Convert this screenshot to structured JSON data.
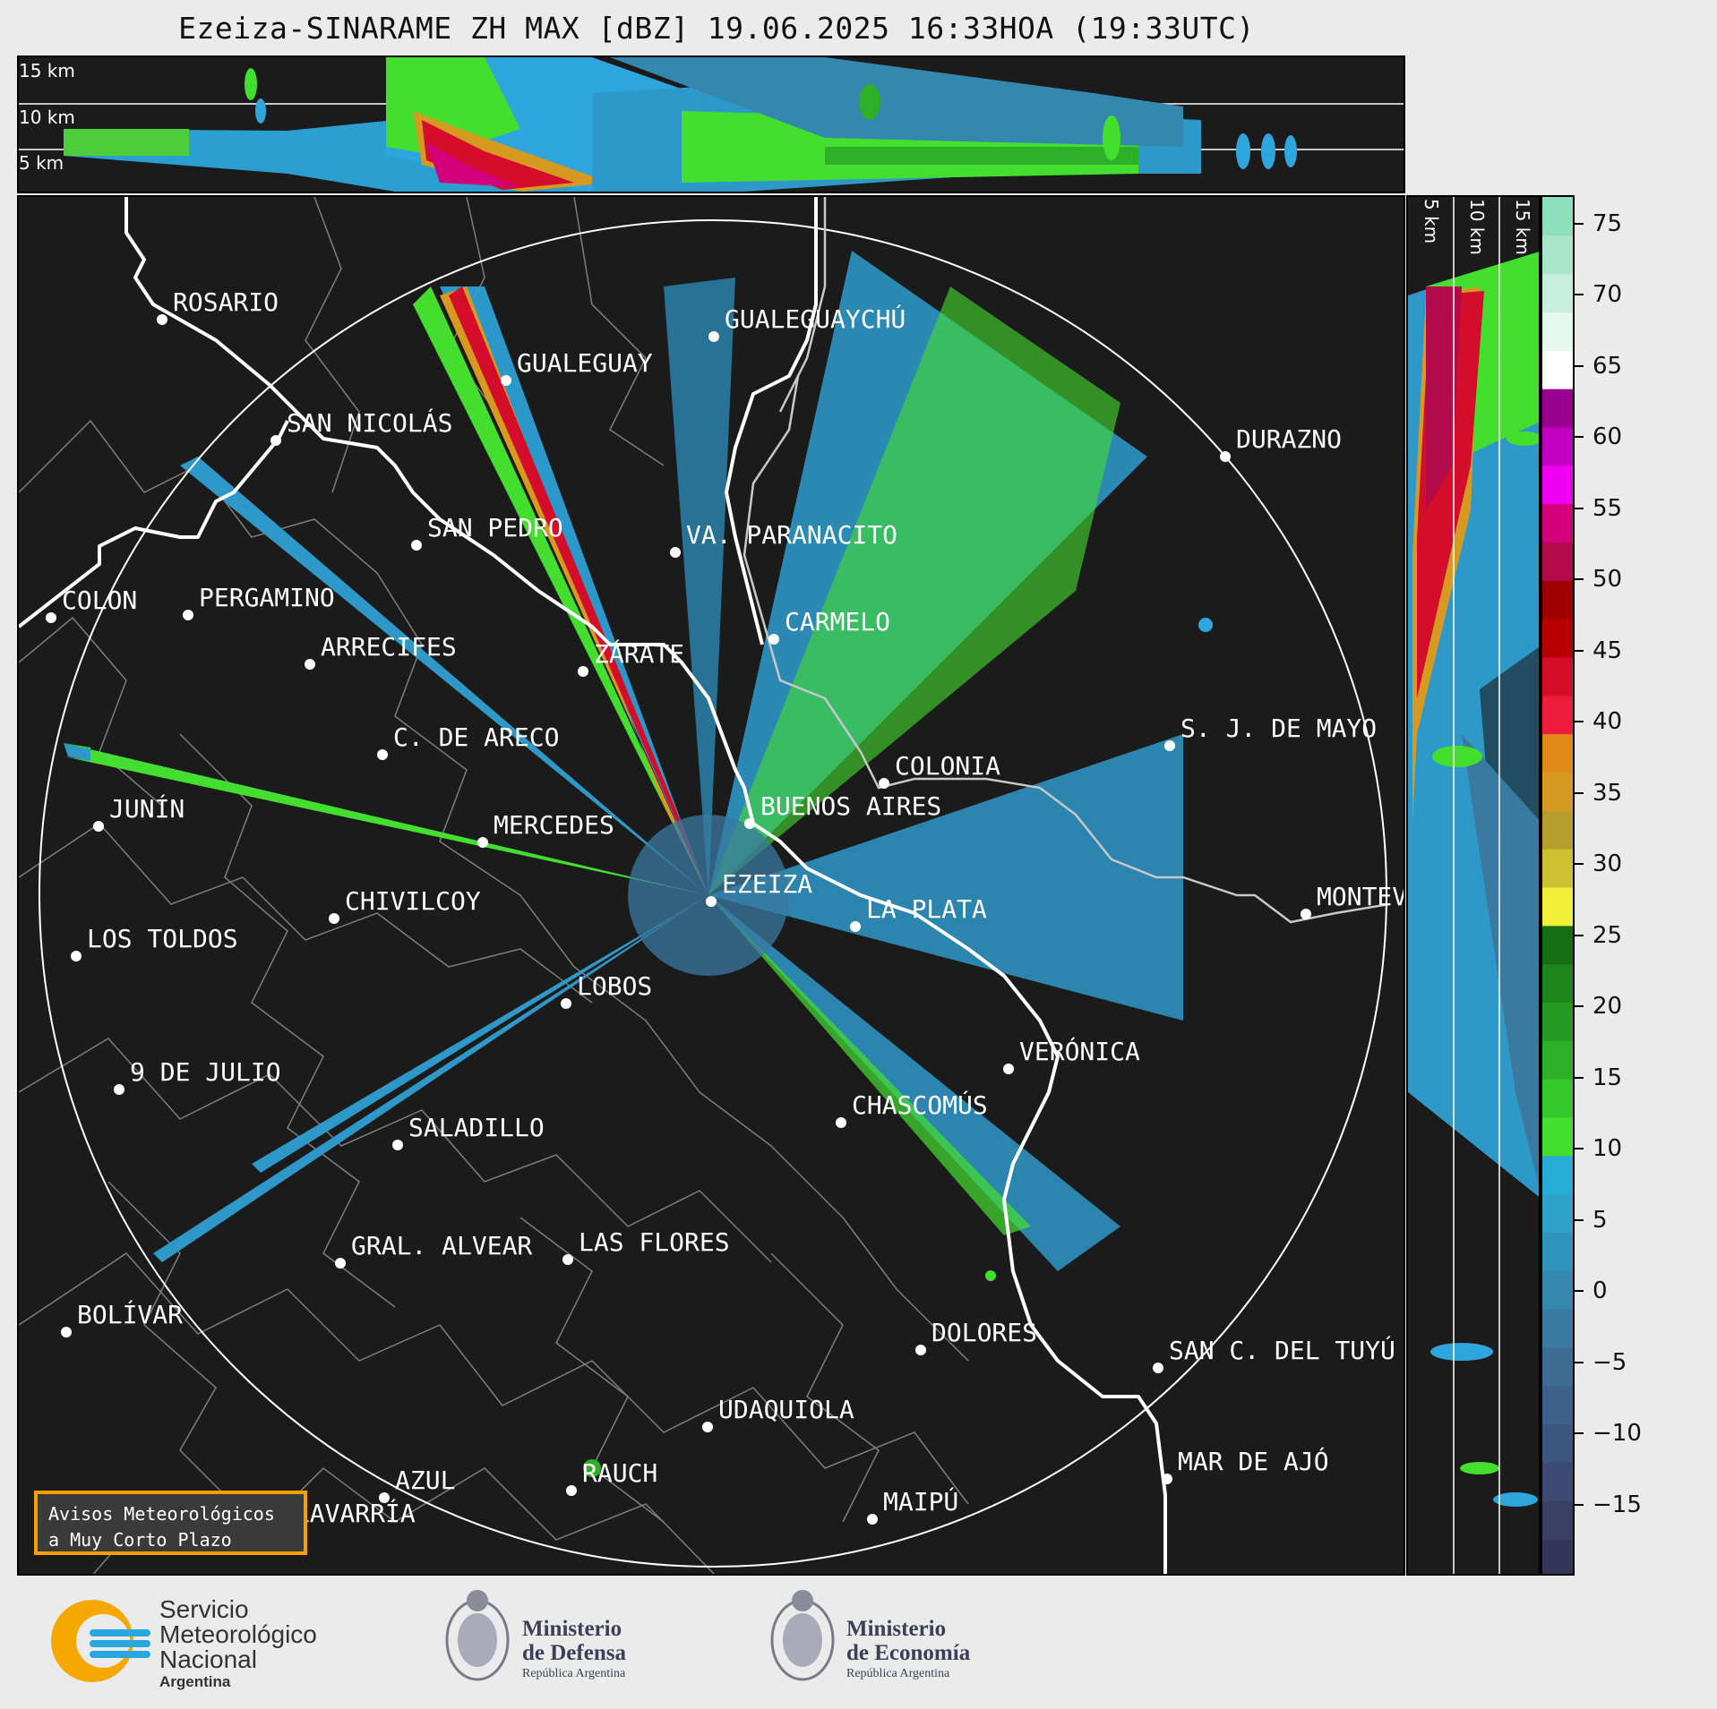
{
  "title": "Ezeiza-SINARAME ZH MAX [dBZ] 19.06.2025 16:33HOA (19:33UTC)",
  "top_panel": {
    "altitude_labels": [
      "15 km",
      "10 km",
      "5 km"
    ]
  },
  "side_panel": {
    "altitude_labels": [
      "5 km",
      "10 km",
      "15 km"
    ]
  },
  "colorbar": {
    "unit": "dBZ",
    "ticks": [
      "75",
      "70",
      "65",
      "60",
      "55",
      "50",
      "45",
      "40",
      "35",
      "30",
      "25",
      "20",
      "15",
      "10",
      "5",
      "0",
      "−5",
      "−10",
      "−15"
    ],
    "colors": [
      "#343659",
      "#3a3f66",
      "#3c4a74",
      "#3d5680",
      "#3e6189",
      "#3d6c92",
      "#3a7aa0",
      "#3487ad",
      "#2f94ba",
      "#2ea3c7",
      "#27acd8",
      "#44de2f",
      "#35c82b",
      "#2daf27",
      "#259a22",
      "#1e851c",
      "#166d15",
      "#f0f03a",
      "#cdc033",
      "#b59e2c",
      "#d69a22",
      "#e08a17",
      "#ee1c3c",
      "#d40d2b",
      "#b80000",
      "#9c0000",
      "#b30a4a",
      "#d2007a",
      "#f000f0",
      "#c000c0",
      "#9a008f",
      "#ffffff",
      "#e6f7ee",
      "#c7efdd",
      "#aae6cb",
      "#8edfbc"
    ],
    "min": -20,
    "max": 77
  },
  "map": {
    "cities": [
      {
        "name": "ROSARIO"
      },
      {
        "name": "GUALEGUAYCHÚ"
      },
      {
        "name": "GUALEGUAY"
      },
      {
        "name": "SAN NICOLÁS"
      },
      {
        "name": "DURAZNO"
      },
      {
        "name": "SAN PEDRO"
      },
      {
        "name": "VA. PARANACITO"
      },
      {
        "name": "COLON"
      },
      {
        "name": "PERGAMINO"
      },
      {
        "name": "CARMELO"
      },
      {
        "name": "ARRECIFES"
      },
      {
        "name": "ZÁRATE"
      },
      {
        "name": "S. J. DE MAYO"
      },
      {
        "name": "C. DE ARECO"
      },
      {
        "name": "COLONIA"
      },
      {
        "name": "BUENOS AIRES"
      },
      {
        "name": "JUNÍN"
      },
      {
        "name": "MERCEDES"
      },
      {
        "name": "EZEIZA"
      },
      {
        "name": "MONTEVIDEO"
      },
      {
        "name": "CHIVILCOY"
      },
      {
        "name": "LA PLATA"
      },
      {
        "name": "LOS TOLDOS"
      },
      {
        "name": "LOBOS"
      },
      {
        "name": "VERÓNICA"
      },
      {
        "name": "9 DE JULIO"
      },
      {
        "name": "CHASCOMÚS"
      },
      {
        "name": "SALADILLO"
      },
      {
        "name": "GRAL. ALVEAR"
      },
      {
        "name": "LAS FLORES"
      },
      {
        "name": "BOLÍVAR"
      },
      {
        "name": "DOLORES"
      },
      {
        "name": "SAN C. DEL TUYÚ"
      },
      {
        "name": "UDAQUIOLA"
      },
      {
        "name": "MAR DE AJÓ"
      },
      {
        "name": "AZUL"
      },
      {
        "name": "RAUCH"
      },
      {
        "name": "OLAVARRÍA"
      },
      {
        "name": "MAIPÚ"
      }
    ]
  },
  "notice": {
    "line1": "Avisos Meteorológicos",
    "line2": "a Muy Corto Plazo"
  },
  "footer": {
    "smn": {
      "line1": "Servicio",
      "line2": "Meteorológico",
      "line3": "Nacional",
      "line4": "Argentina"
    },
    "defensa": {
      "line1": "Ministerio",
      "line2": "de Defensa",
      "line3": "República Argentina"
    },
    "economia": {
      "line1": "Ministerio",
      "line2": "de Economía",
      "line3": "República Argentina"
    }
  }
}
